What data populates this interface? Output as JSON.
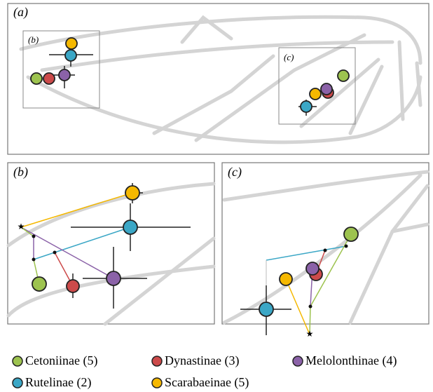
{
  "panels": [
    {
      "label": "(a)"
    },
    {
      "label": "(b)"
    },
    {
      "label": "(c)"
    }
  ],
  "insets": [
    {
      "label": "(b)"
    },
    {
      "label": "(c)"
    }
  ],
  "legend": [
    {
      "name": "Cetoniinae (5)",
      "color": "#9dc34f"
    },
    {
      "name": "Dynastinae (3)",
      "color": "#cc4a4a"
    },
    {
      "name": "Melolonthinae (4)",
      "color": "#8b62a8"
    },
    {
      "name": "Rutelinae (2)",
      "color": "#3ba7c6"
    },
    {
      "name": "Scarabaeinae (5)",
      "color": "#f5b800"
    }
  ]
}
